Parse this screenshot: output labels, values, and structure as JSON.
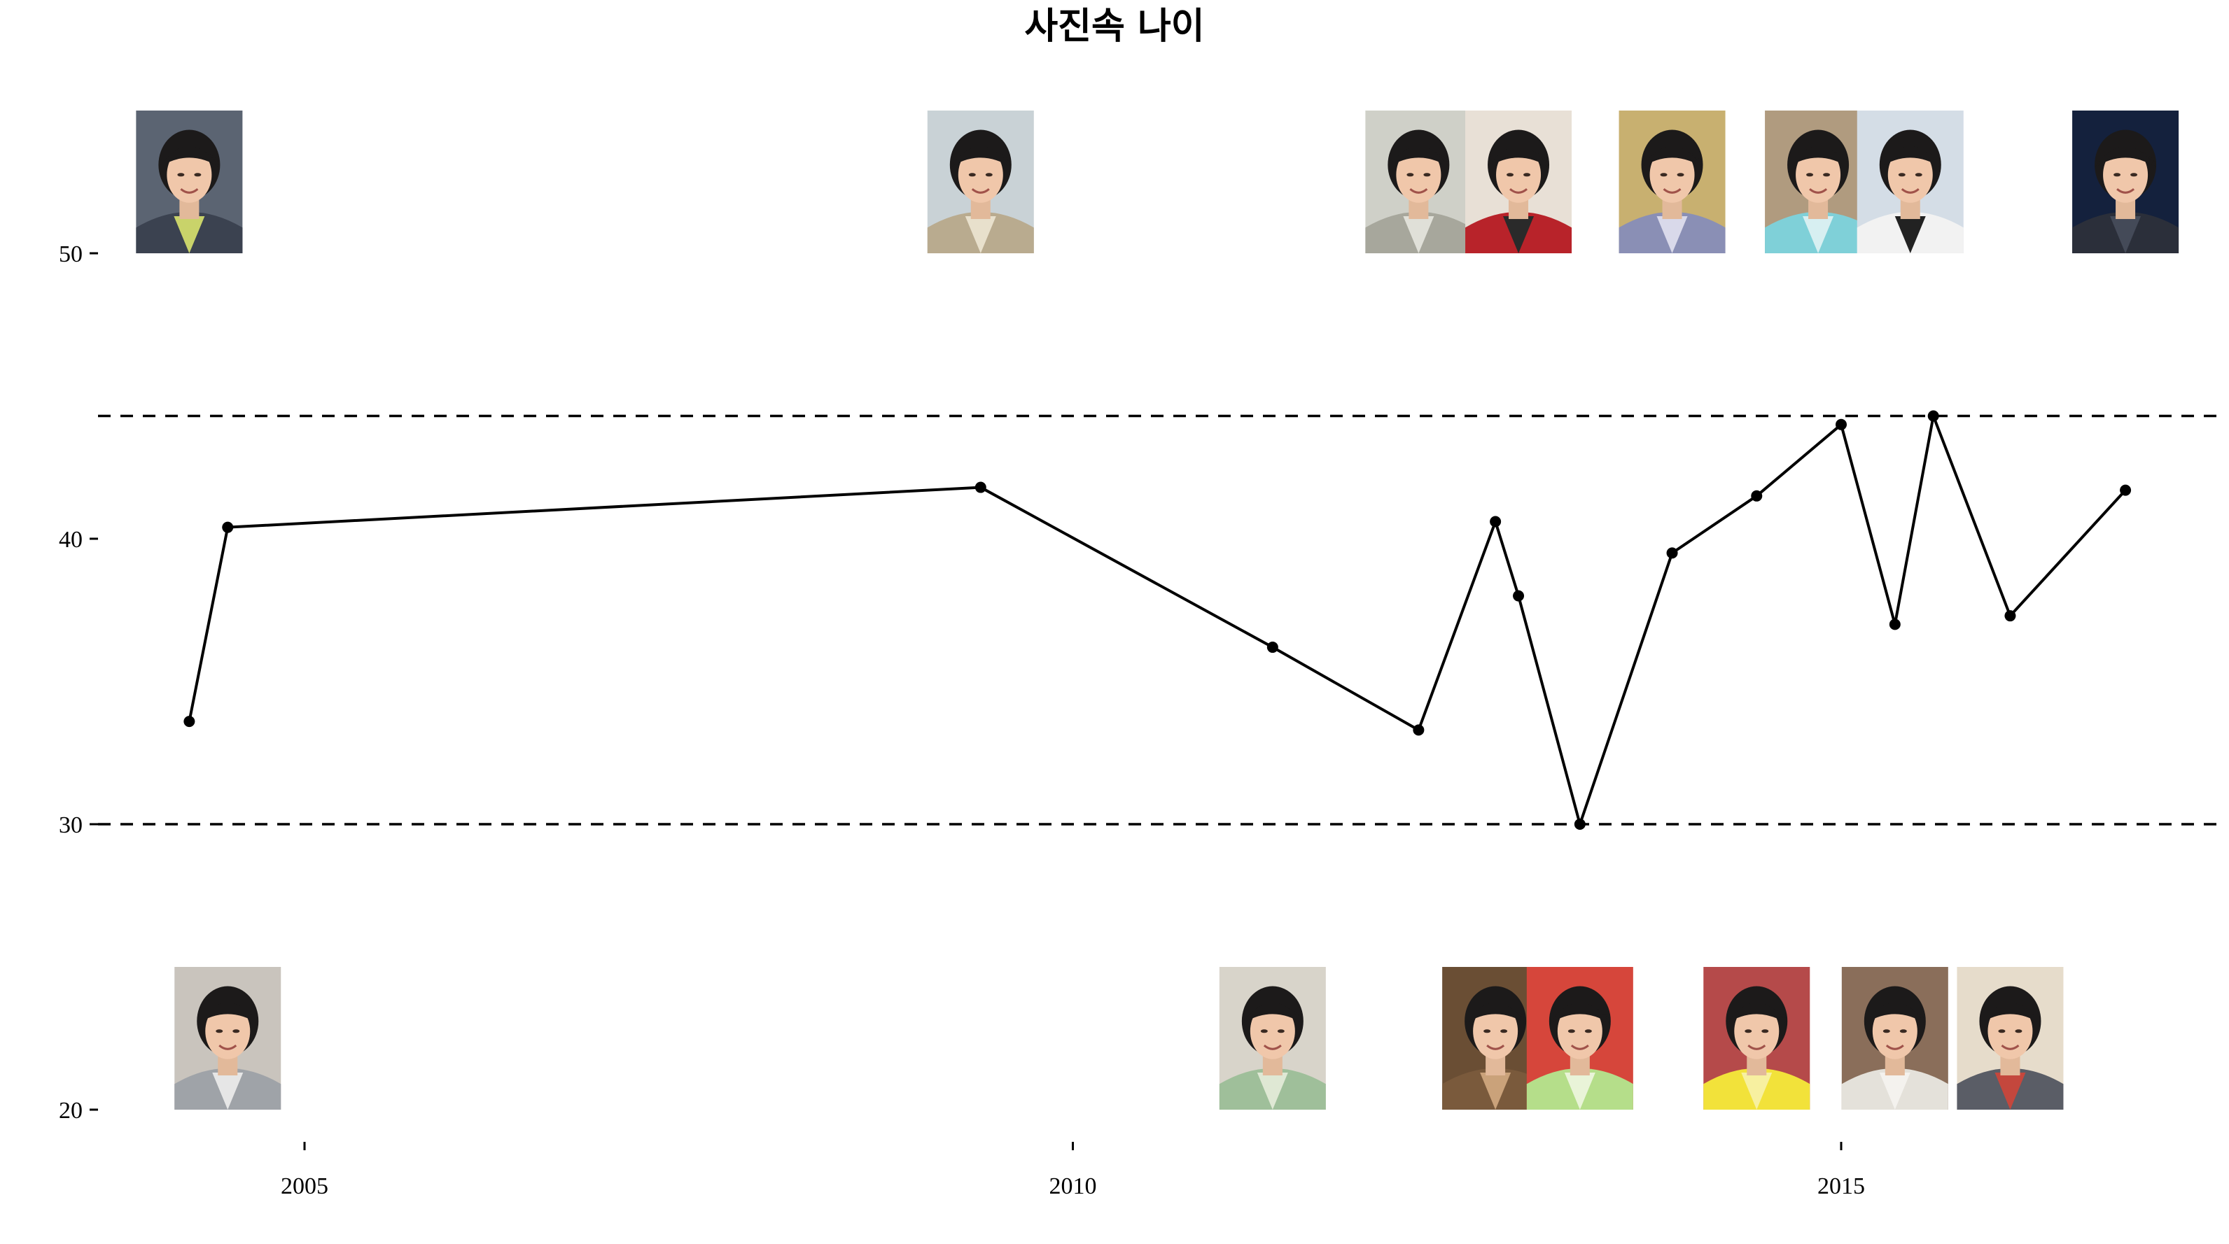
{
  "chart_data": {
    "type": "line",
    "title": "사진속 나이",
    "xlabel": "",
    "ylabel": "",
    "x_ticks": [
      "2005",
      "2010",
      "2015"
    ],
    "y_ticks": [
      "20",
      "30",
      "40",
      "50"
    ],
    "xlim": [
      2003.1,
      2017.4
    ],
    "ylim": [
      20,
      50
    ],
    "grid": false,
    "legend": "none",
    "reference_lines": [
      30,
      44.3
    ],
    "series": [
      {
        "x": [
          2004.25,
          2004.5,
          2009.4,
          2011.3,
          2012.25,
          2012.75,
          2012.9,
          2013.3,
          2013.9,
          2014.45,
          2015.0,
          2015.35,
          2015.6,
          2016.1,
          2016.85
        ],
        "values": [
          33.6,
          40.4,
          41.8,
          36.2,
          33.3,
          40.6,
          38.0,
          30.0,
          39.5,
          41.5,
          44.0,
          37.0,
          44.3,
          37.3,
          41.7
        ],
        "color": "#000000"
      }
    ],
    "photos": [
      {
        "x": 2004.25,
        "row": "top",
        "icon": "portrait-photo",
        "bg": "#5b6472",
        "jacket": "#3b4250",
        "accent": "#c9d36a"
      },
      {
        "x": 2009.4,
        "row": "top",
        "icon": "portrait-photo",
        "bg": "#c9d2d6",
        "jacket": "#b9ab8f",
        "accent": "#e8e0cc"
      },
      {
        "x": 2012.25,
        "row": "top",
        "icon": "portrait-photo",
        "bg": "#cfd0c8",
        "jacket": "#a7a79c",
        "accent": "#e0e0d8"
      },
      {
        "x": 2012.9,
        "row": "top",
        "icon": "portrait-photo",
        "bg": "#e8e0d6",
        "jacket": "#b8232a",
        "accent": "#2a2a2a"
      },
      {
        "x": 2013.9,
        "row": "top",
        "icon": "portrait-photo",
        "bg": "#c8b070",
        "jacket": "#8a8fb5",
        "accent": "#d9d9ea"
      },
      {
        "x": 2014.85,
        "row": "top",
        "icon": "portrait-photo",
        "bg": "#b09b7f",
        "jacket": "#7fd0d8",
        "accent": "#d7eff1"
      },
      {
        "x": 2015.45,
        "row": "top",
        "icon": "portrait-photo",
        "bg": "#d4dde6",
        "jacket": "#f2f2f2",
        "accent": "#222222"
      },
      {
        "x": 2016.85,
        "row": "top",
        "icon": "portrait-photo",
        "bg": "#14213d",
        "jacket": "#2b2f3a",
        "accent": "#444a58"
      },
      {
        "x": 2004.5,
        "row": "bottom",
        "icon": "portrait-photo",
        "bg": "#c9c4bd",
        "jacket": "#9fa3a8",
        "accent": "#e6e6e6"
      },
      {
        "x": 2011.3,
        "row": "bottom",
        "icon": "portrait-photo",
        "bg": "#d8d4ca",
        "jacket": "#9fbf9a",
        "accent": "#dfe8d4"
      },
      {
        "x": 2012.75,
        "row": "bottom",
        "icon": "portrait-photo",
        "bg": "#6a4e34",
        "jacket": "#7a5a3c",
        "accent": "#caa27a"
      },
      {
        "x": 2013.3,
        "row": "bottom",
        "icon": "portrait-photo",
        "bg": "#d6463b",
        "jacket": "#b5de8a",
        "accent": "#e9f4d8"
      },
      {
        "x": 2014.45,
        "row": "bottom",
        "icon": "portrait-photo",
        "bg": "#b54a4a",
        "jacket": "#f2e23a",
        "accent": "#f7f0a0"
      },
      {
        "x": 2015.35,
        "row": "bottom",
        "icon": "portrait-photo",
        "bg": "#8a6e5a",
        "jacket": "#e4e1da",
        "accent": "#f4f2ee"
      },
      {
        "x": 2016.1,
        "row": "bottom",
        "icon": "portrait-photo",
        "bg": "#e6dccb",
        "jacket": "#5a5d66",
        "accent": "#c4473d"
      }
    ]
  }
}
